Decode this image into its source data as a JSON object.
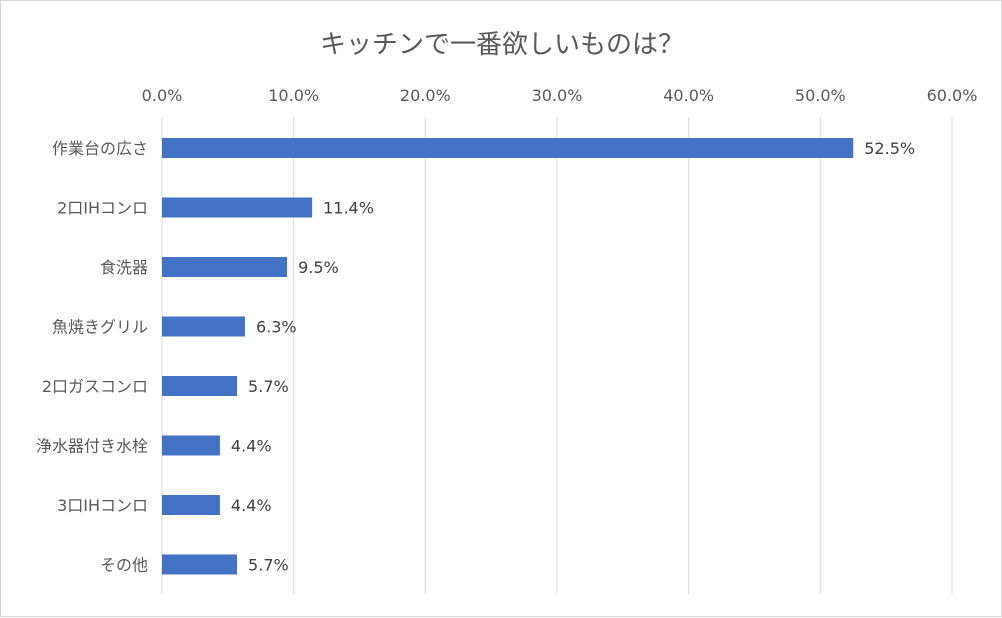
{
  "chart_data": {
    "type": "bar",
    "orientation": "horizontal",
    "title": "キッチンで一番欲しいものは？",
    "categories": [
      "作業台の広さ",
      "2口IHコンロ",
      "食洗器",
      "魚焼きグリル",
      "2口ガスコンロ",
      "浄水器付き水栓",
      "3口IHコンロ",
      "その他"
    ],
    "values": [
      52.5,
      11.4,
      9.5,
      6.3,
      5.7,
      4.4,
      4.4,
      5.7
    ],
    "value_labels": [
      "52.5%",
      "11.4%",
      "9.5%",
      "6.3%",
      "5.7%",
      "4.4%",
      "4.4%",
      "5.7%"
    ],
    "xlim": [
      0,
      60
    ],
    "ticks": [
      0,
      10,
      20,
      30,
      40,
      50,
      60
    ],
    "tick_labels": [
      "0.0%",
      "10.0%",
      "20.0%",
      "30.0%",
      "40.0%",
      "50.0%",
      "60.0%"
    ],
    "axis_position": "top",
    "grid": true,
    "legend": false,
    "colors": {
      "bar": "#4472c4",
      "grid": "#d9d9d9",
      "text": "#595959"
    }
  }
}
